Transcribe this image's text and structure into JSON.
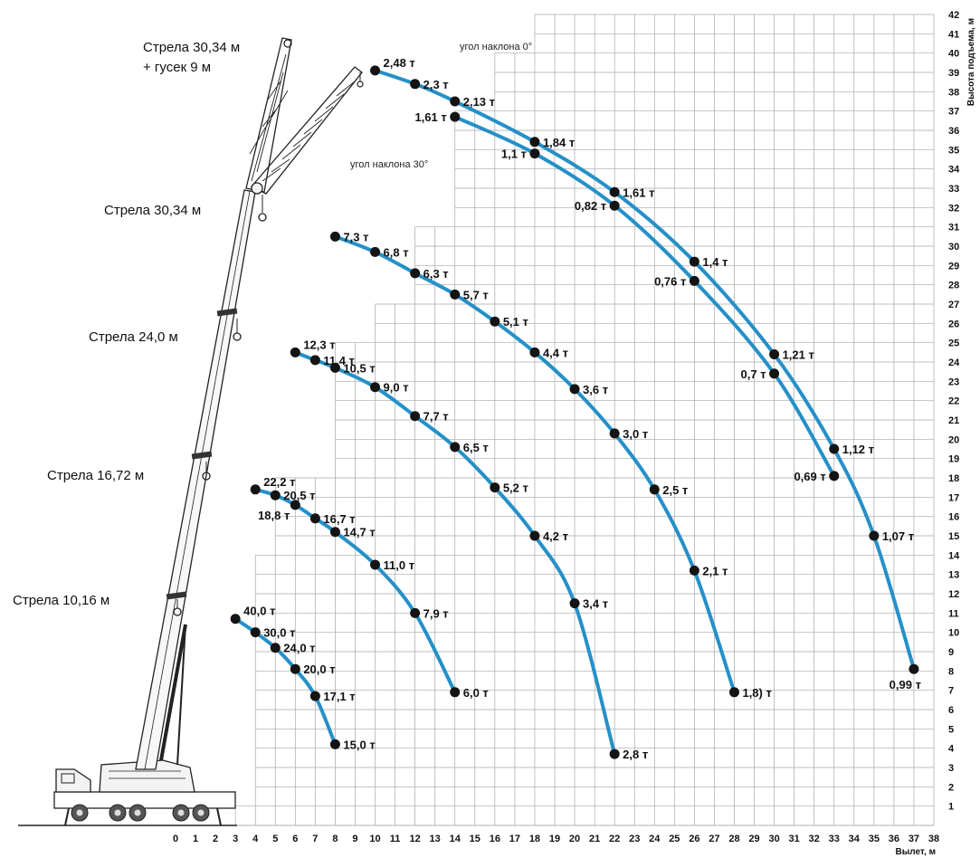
{
  "chart_data": {
    "type": "line",
    "xlabel": "Вылет, м",
    "ylabel": "Высота подъема, м",
    "xlim": [
      0,
      38
    ],
    "ylim": [
      0,
      42
    ],
    "x_ticks": [
      "0",
      "1",
      "2",
      "3",
      "4",
      "5",
      "6",
      "7",
      "8",
      "9",
      "10",
      "11",
      "12",
      "13",
      "14",
      "15",
      "16",
      "17",
      "18",
      "19",
      "20",
      "21",
      "22",
      "23",
      "24",
      "25",
      "26",
      "27",
      "28",
      "29",
      "30",
      "31",
      "32",
      "33",
      "34",
      "35",
      "36",
      "37",
      "38"
    ],
    "y_ticks": [
      "1",
      "2",
      "3",
      "4",
      "5",
      "6",
      "7",
      "8",
      "9",
      "10",
      "11",
      "12",
      "13",
      "14",
      "15",
      "16",
      "17",
      "18",
      "19",
      "20",
      "21",
      "22",
      "23",
      "24",
      "25",
      "26",
      "27",
      "28",
      "29",
      "30",
      "31",
      "32",
      "33",
      "34",
      "35",
      "36",
      "37",
      "38",
      "39",
      "40",
      "41",
      "42"
    ],
    "boom_labels": [
      {
        "text": "Стрела 30,34 м",
        "text2": "+ гусек 9 м"
      },
      {
        "text": "Стрела 30,34 м"
      },
      {
        "text": "Стрела 24,0 м"
      },
      {
        "text": "Стрела 16,72 м"
      },
      {
        "text": "Стрела 10,16 м"
      }
    ],
    "annotations": [
      "угол наклона 0°",
      "угол наклона 30°"
    ],
    "series": [
      {
        "points": [
          {
            "x": 3,
            "y": 10.7,
            "label": "40,0 т"
          },
          {
            "x": 4,
            "y": 10,
            "label": "30,0 т"
          },
          {
            "x": 5,
            "y": 9.2,
            "label": "24,0 т"
          },
          {
            "x": 6,
            "y": 8.1,
            "label": "20,0 т"
          },
          {
            "x": 7,
            "y": 6.7,
            "label": "17,1 т"
          },
          {
            "x": 8,
            "y": 4.2,
            "label": "15,0 т"
          }
        ]
      },
      {
        "points": [
          {
            "x": 4,
            "y": 17.4,
            "label": "22,2 т"
          },
          {
            "x": 5,
            "y": 17.1,
            "label": "20,5 т"
          },
          {
            "x": 6,
            "y": 16.6,
            "label": "18,8 т"
          },
          {
            "x": 7,
            "y": 15.9,
            "label": "16,7 т"
          },
          {
            "x": 8,
            "y": 15.2,
            "label": "14,7 т"
          },
          {
            "x": 10,
            "y": 13.5,
            "label": "11,0 т"
          },
          {
            "x": 12,
            "y": 11.0,
            "label": "7,9 т"
          },
          {
            "x": 14,
            "y": 6.9,
            "label": "6,0 т"
          }
        ]
      },
      {
        "points": [
          {
            "x": 6,
            "y": 24.5,
            "label": "12,3 т"
          },
          {
            "x": 7,
            "y": 24.1,
            "label": "11,4 т"
          },
          {
            "x": 8,
            "y": 23.7,
            "label": "10,5 т"
          },
          {
            "x": 10,
            "y": 22.7,
            "label": "9,0 т"
          },
          {
            "x": 12,
            "y": 21.2,
            "label": "7,7 т"
          },
          {
            "x": 14,
            "y": 19.6,
            "label": "6,5 т"
          },
          {
            "x": 16,
            "y": 17.5,
            "label": "5,2 т"
          },
          {
            "x": 18,
            "y": 15.0,
            "label": "4,2 т"
          },
          {
            "x": 20,
            "y": 11.5,
            "label": "3,4 т"
          },
          {
            "x": 22,
            "y": 3.7,
            "label": "2,8 т"
          }
        ]
      },
      {
        "points": [
          {
            "x": 8,
            "y": 30.5,
            "label": "7,3 т"
          },
          {
            "x": 10,
            "y": 29.7,
            "label": "6,8 т"
          },
          {
            "x": 12,
            "y": 28.6,
            "label": "6,3 т"
          },
          {
            "x": 14,
            "y": 27.5,
            "label": "5,7 т"
          },
          {
            "x": 16,
            "y": 26.1,
            "label": "5,1 т"
          },
          {
            "x": 18,
            "y": 24.5,
            "label": "4,4 т"
          },
          {
            "x": 20,
            "y": 22.6,
            "label": "3,6 т"
          },
          {
            "x": 22,
            "y": 20.3,
            "label": "3,0 т"
          },
          {
            "x": 24,
            "y": 17.4,
            "label": "2,5 т"
          },
          {
            "x": 26,
            "y": 13.2,
            "label": "2,1 т"
          },
          {
            "x": 28,
            "y": 6.9,
            "label": "1,8) т"
          }
        ]
      },
      {
        "points": [
          {
            "x": 10,
            "y": 39.1,
            "label": "2,48 т"
          },
          {
            "x": 12,
            "y": 38.4,
            "label": "2,3 т"
          },
          {
            "x": 14,
            "y": 37.5,
            "label": "2,13 т"
          },
          {
            "x": 18,
            "y": 35.4,
            "label": "1,84 т"
          },
          {
            "x": 22,
            "y": 32.8,
            "label": "1,61 т"
          },
          {
            "x": 26,
            "y": 29.2,
            "label": "1,4 т"
          },
          {
            "x": 30,
            "y": 24.4,
            "label": "1,21 т"
          },
          {
            "x": 33,
            "y": 19.5,
            "label": "1,12 т"
          },
          {
            "x": 35,
            "y": 15.0,
            "label": "1,07 т"
          },
          {
            "x": 37,
            "y": 8.1,
            "label": "0,99 т"
          }
        ]
      },
      {
        "points": [
          {
            "x": 14,
            "y": 36.7,
            "label": "1,61 т"
          },
          {
            "x": 18,
            "y": 34.8,
            "label": "1,1 т"
          },
          {
            "x": 22,
            "y": 32.1,
            "label": "0,82 т"
          },
          {
            "x": 26,
            "y": 28.2,
            "label": "0,76 т"
          },
          {
            "x": 30,
            "y": 23.4,
            "label": "0,7 т"
          },
          {
            "x": 33,
            "y": 18.1,
            "label": "0,69 т"
          }
        ]
      }
    ]
  }
}
